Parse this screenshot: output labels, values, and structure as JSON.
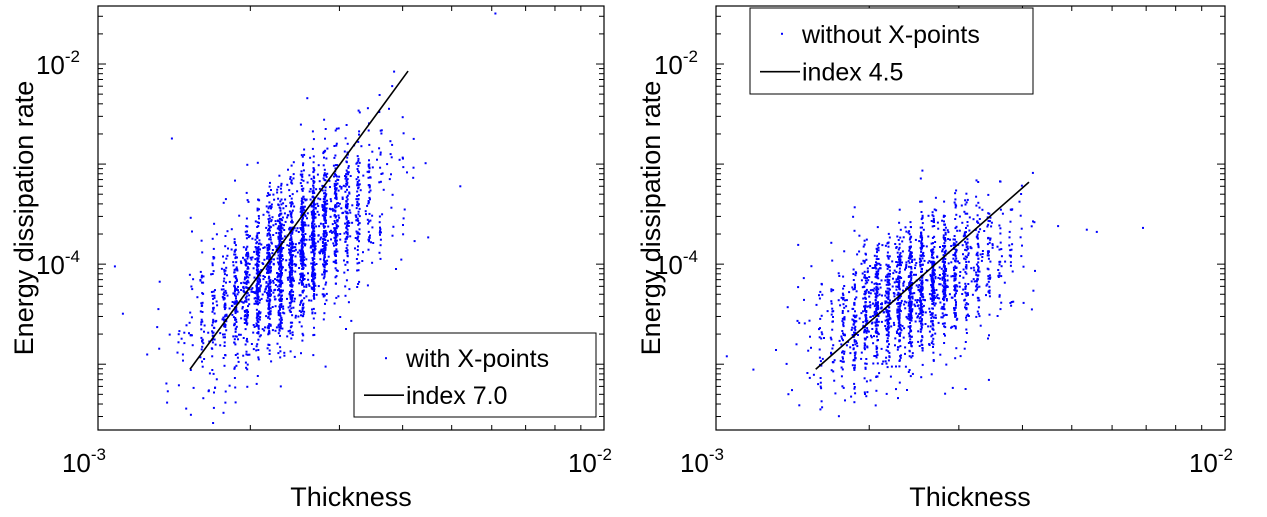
{
  "chart_data": [
    {
      "type": "scatter",
      "xlabel": "Thickness",
      "ylabel": "Energy dissipation rate",
      "xscale": "log",
      "yscale": "log",
      "xlim": [
        0.001,
        0.01
      ],
      "ylim": [
        2.2e-06,
        0.038
      ],
      "xticks": [
        {
          "base": "10",
          "exp": "-3"
        },
        {
          "base": "10",
          "exp": "-2"
        }
      ],
      "yticks": [
        {
          "value": 0.0001,
          "base": "10",
          "exp": "-4"
        },
        {
          "value": 0.01,
          "base": "10",
          "exp": "-2"
        }
      ],
      "grid": false,
      "legend_position": "bottom-right",
      "series": [
        {
          "name": "with X-points",
          "kind": "points",
          "color": "#0000ff",
          "count": 2600,
          "x_range": [
            0.0011,
            0.0061
          ],
          "y_range": [
            2.5e-06,
            0.03
          ],
          "fit_index": 7.0,
          "center": [
            0.0024,
            0.00012
          ]
        },
        {
          "name": "index 7.0",
          "kind": "line",
          "color": "#000000",
          "x": [
            0.00152,
            0.0041
          ],
          "y": [
            8.9e-06,
            0.0085
          ]
        }
      ]
    },
    {
      "type": "scatter",
      "xlabel": "Thickness",
      "ylabel": "Energy dissipation rate",
      "xscale": "log",
      "yscale": "log",
      "xlim": [
        0.001,
        0.01
      ],
      "ylim": [
        2.2e-06,
        0.038
      ],
      "xticks": [
        {
          "base": "10",
          "exp": "-3"
        },
        {
          "base": "10",
          "exp": "-2"
        }
      ],
      "yticks": [
        {
          "value": 0.0001,
          "base": "10",
          "exp": "-4"
        },
        {
          "value": 0.01,
          "base": "10",
          "exp": "-2"
        }
      ],
      "grid": false,
      "legend_position": "top-left",
      "series": [
        {
          "name": "without X-points",
          "kind": "points",
          "color": "#0000ff",
          "count": 2000,
          "x_range": [
            0.0011,
            0.0073
          ],
          "y_range": [
            2.5e-06,
            0.0009
          ],
          "fit_index": 4.5,
          "center": [
            0.00245,
            5.2e-05
          ]
        },
        {
          "name": "index 4.5",
          "kind": "line",
          "color": "#000000",
          "x": [
            0.00157,
            0.00412
          ],
          "y": [
            8.9e-06,
            0.00066
          ]
        }
      ]
    }
  ]
}
